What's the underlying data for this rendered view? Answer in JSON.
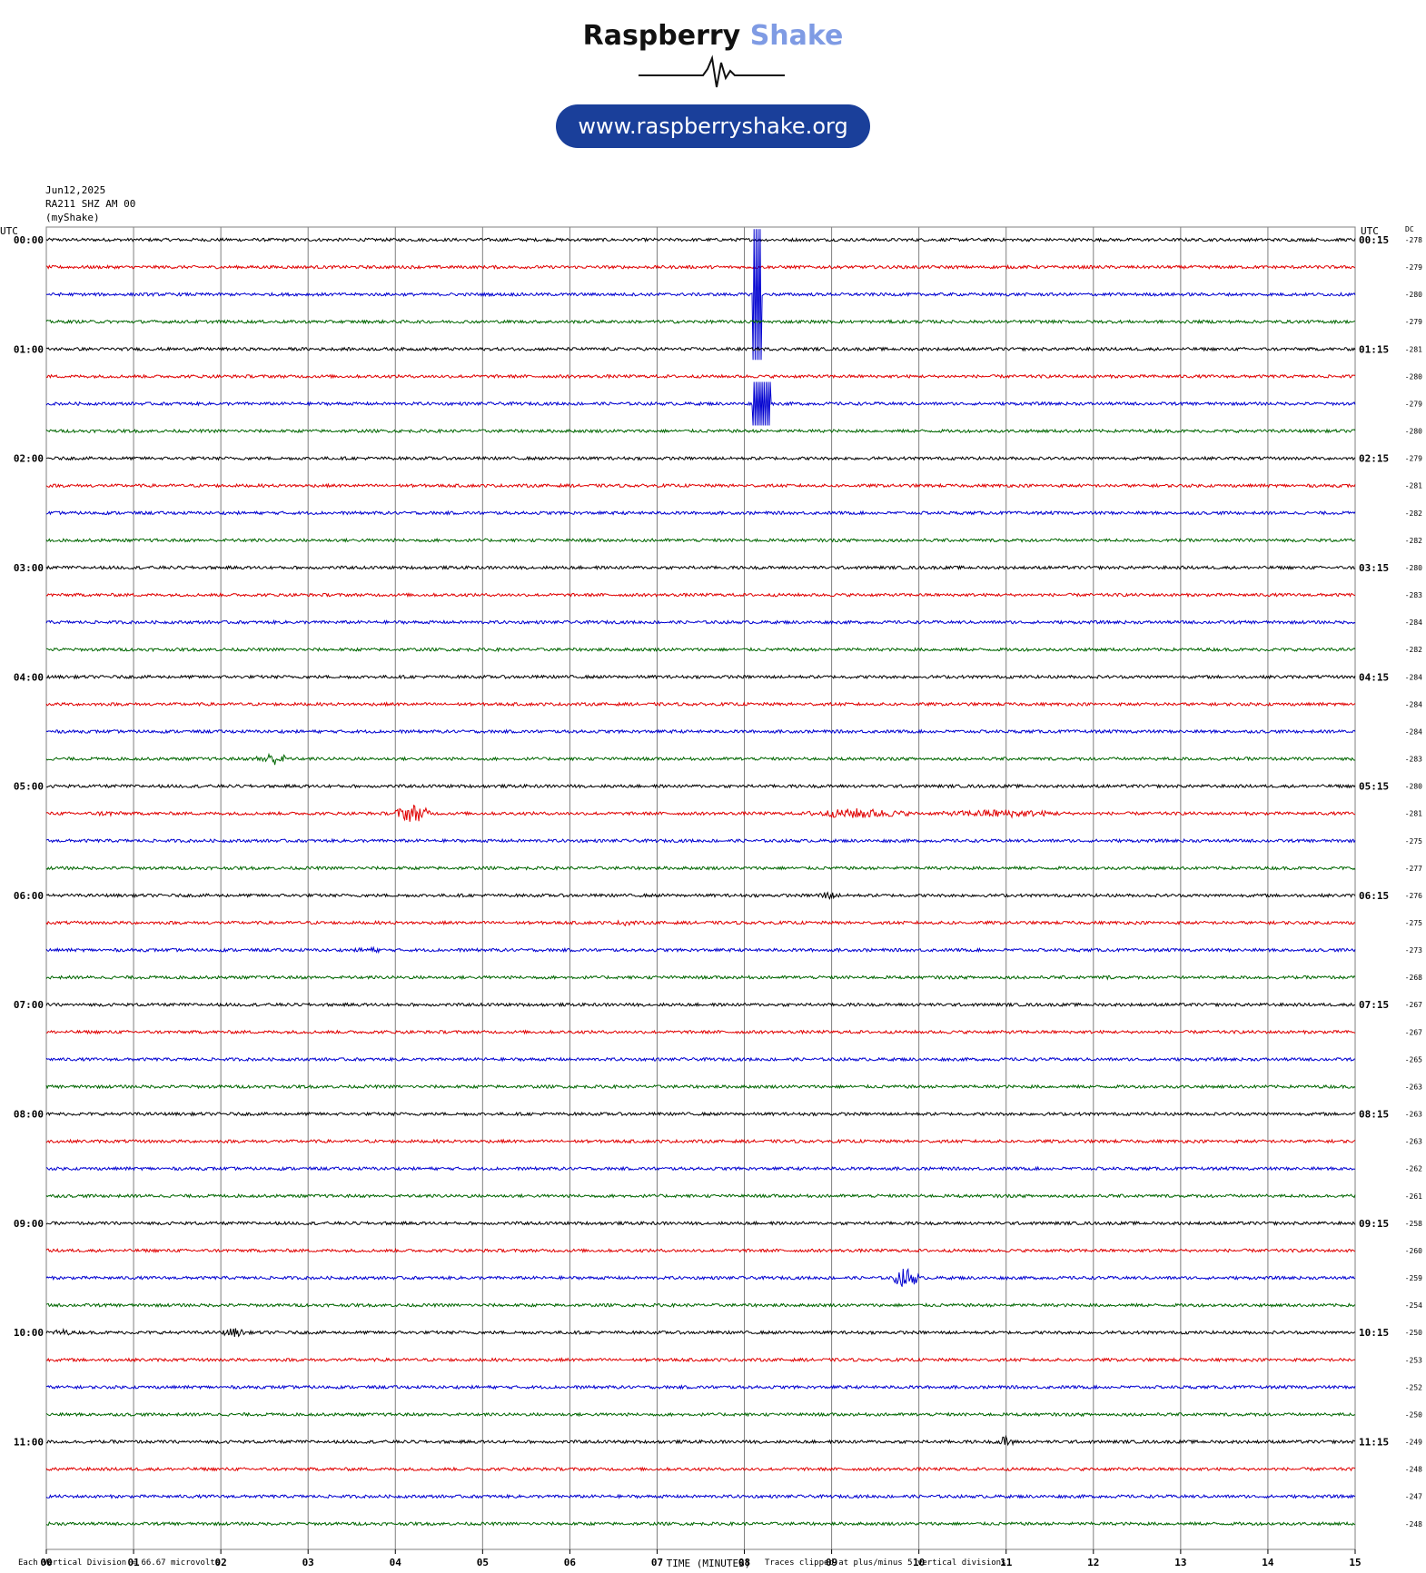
{
  "header": {
    "logo_text_dark": "Raspberry",
    "logo_text_light": "Shake",
    "url": "www.raspberryshake.org",
    "date": "Jun12,2025",
    "station": "RA211 SHZ AM 00",
    "network": "(myShake)"
  },
  "axes": {
    "left_utc_label": "UTC",
    "right_utc_label": "UTC",
    "dc_label": "DC",
    "xlabel": "TIME (MINUTES)",
    "xticks": [
      "00",
      "01",
      "02",
      "03",
      "04",
      "05",
      "06",
      "07",
      "08",
      "09",
      "10",
      "11",
      "12",
      "13",
      "14",
      "15"
    ],
    "left_hour_labels": [
      "00:00",
      "01:00",
      "02:00",
      "03:00",
      "04:00",
      "05:00",
      "06:00",
      "07:00",
      "08:00",
      "09:00",
      "10:00",
      "11:00"
    ],
    "right_hour_labels": [
      "00:15",
      "01:15",
      "02:15",
      "03:15",
      "04:15",
      "05:15",
      "06:15",
      "07:15",
      "08:15",
      "09:15",
      "10:15",
      "11:15"
    ]
  },
  "footer": {
    "division_note": "Each Vertical Division =   66.67 microvolts",
    "clip_note": "Traces clipped at plus/minus 5 vertical divisions"
  },
  "colors": {
    "trace_cycle": [
      "#000000",
      "#e00000",
      "#0000d0",
      "#006600"
    ],
    "grid": "#808080",
    "pill": "#1a3f9a",
    "brand_light": "#7f9be4"
  },
  "chart_data": {
    "type": "line",
    "title": "",
    "xlabel": "TIME (MINUTES)",
    "xlim": [
      0,
      15
    ],
    "trace_minutes": 15,
    "row_start_times": [
      "00:00",
      "00:15",
      "00:30",
      "00:45",
      "01:00",
      "01:15",
      "01:30",
      "01:45",
      "02:00",
      "02:15",
      "02:30",
      "02:45",
      "03:00",
      "03:15",
      "03:30",
      "03:45",
      "04:00",
      "04:15",
      "04:30",
      "04:45",
      "05:00",
      "05:15",
      "05:30",
      "05:45",
      "06:00",
      "06:15",
      "06:30",
      "06:45",
      "07:00",
      "07:15",
      "07:30",
      "07:45",
      "08:00",
      "08:15",
      "08:30",
      "08:45",
      "09:00",
      "09:15",
      "09:30",
      "09:45",
      "10:00",
      "10:15",
      "10:30",
      "10:45",
      "11:00",
      "11:15",
      "11:30",
      "11:45"
    ],
    "dc_offsets": [
      -278,
      -279,
      -280,
      -279,
      -281,
      -280,
      -279,
      -280,
      -279,
      -281,
      -282,
      -282,
      -280,
      -283,
      -284,
      -282,
      -284,
      -284,
      -284,
      -283,
      -280,
      -281,
      -275,
      -277,
      -276,
      -275,
      -273,
      -268,
      -267,
      -267,
      -265,
      -263,
      -263,
      -263,
      -262,
      -261,
      -258,
      -260,
      -259,
      -254,
      -250,
      -253,
      -252,
      -250,
      -249,
      -248,
      -247,
      -248
    ],
    "events": [
      {
        "row": 2,
        "start_min": 8.1,
        "end_min": 8.2,
        "amp_div": 12,
        "kind": "spike"
      },
      {
        "row": 6,
        "start_min": 8.1,
        "end_min": 8.3,
        "amp_div": 4,
        "kind": "spike"
      },
      {
        "row": 19,
        "start_min": 2.4,
        "end_min": 2.8,
        "amp_div": 1.2
      },
      {
        "row": 21,
        "start_min": 0.4,
        "end_min": 1.0,
        "amp_div": 0.5
      },
      {
        "row": 21,
        "start_min": 4.0,
        "end_min": 4.4,
        "amp_div": 1.8
      },
      {
        "row": 21,
        "start_min": 8.7,
        "end_min": 9.9,
        "amp_div": 1.0
      },
      {
        "row": 21,
        "start_min": 10.2,
        "end_min": 11.7,
        "amp_div": 0.8
      },
      {
        "row": 24,
        "start_min": 8.8,
        "end_min": 9.1,
        "amp_div": 0.8
      },
      {
        "row": 25,
        "start_min": 6.5,
        "end_min": 6.8,
        "amp_div": 0.6
      },
      {
        "row": 25,
        "start_min": 10.2,
        "end_min": 10.5,
        "amp_div": 0.4
      },
      {
        "row": 26,
        "start_min": 3.5,
        "end_min": 3.9,
        "amp_div": 0.6
      },
      {
        "row": 27,
        "start_min": 12.0,
        "end_min": 12.3,
        "amp_div": 0.4
      },
      {
        "row": 37,
        "start_min": 5.6,
        "end_min": 5.9,
        "amp_div": 0.3
      },
      {
        "row": 38,
        "start_min": 9.7,
        "end_min": 10.0,
        "amp_div": 2.0
      },
      {
        "row": 40,
        "start_min": 0.05,
        "end_min": 0.3,
        "amp_div": 0.7
      },
      {
        "row": 40,
        "start_min": 2.0,
        "end_min": 2.3,
        "amp_div": 0.9
      },
      {
        "row": 44,
        "start_min": 10.9,
        "end_min": 11.1,
        "amp_div": 1.2
      }
    ]
  }
}
